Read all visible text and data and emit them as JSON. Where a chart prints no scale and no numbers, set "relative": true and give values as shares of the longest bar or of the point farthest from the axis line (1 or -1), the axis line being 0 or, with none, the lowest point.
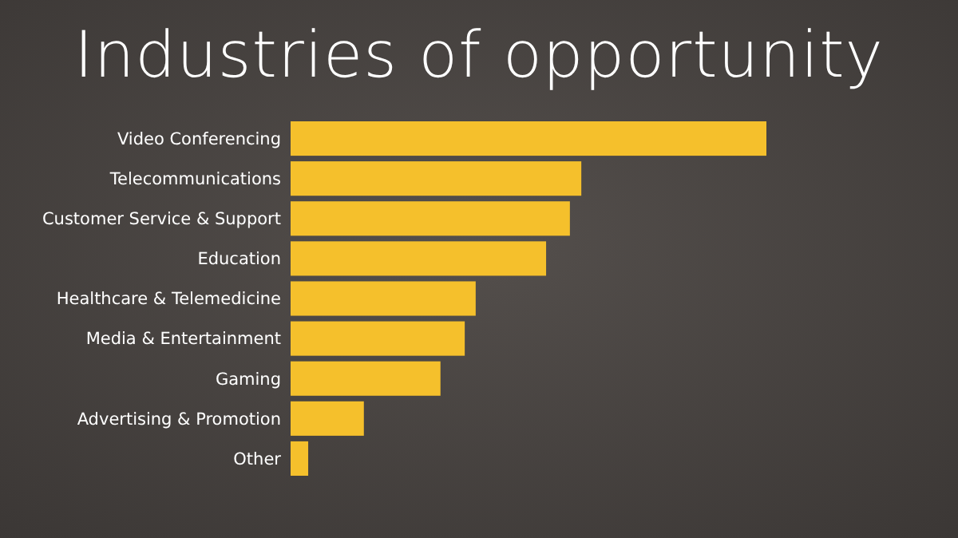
{
  "chart_data": {
    "type": "bar",
    "title": "Industries of opportunity",
    "orientation": "horizontal",
    "relative": true,
    "categories": [
      "Video Conferencing",
      "Telecommunications",
      "Customer Service & Support",
      "Education",
      "Healthcare & Telemedicine",
      "Media & Entertainment",
      "Gaming",
      "Advertising & Promotion",
      "Other"
    ],
    "values": [
      1,
      0.611,
      0.587,
      0.537,
      0.389,
      0.366,
      0.315,
      0.154,
      0.037
    ],
    "color": "#f5c02c",
    "grid": false
  }
}
